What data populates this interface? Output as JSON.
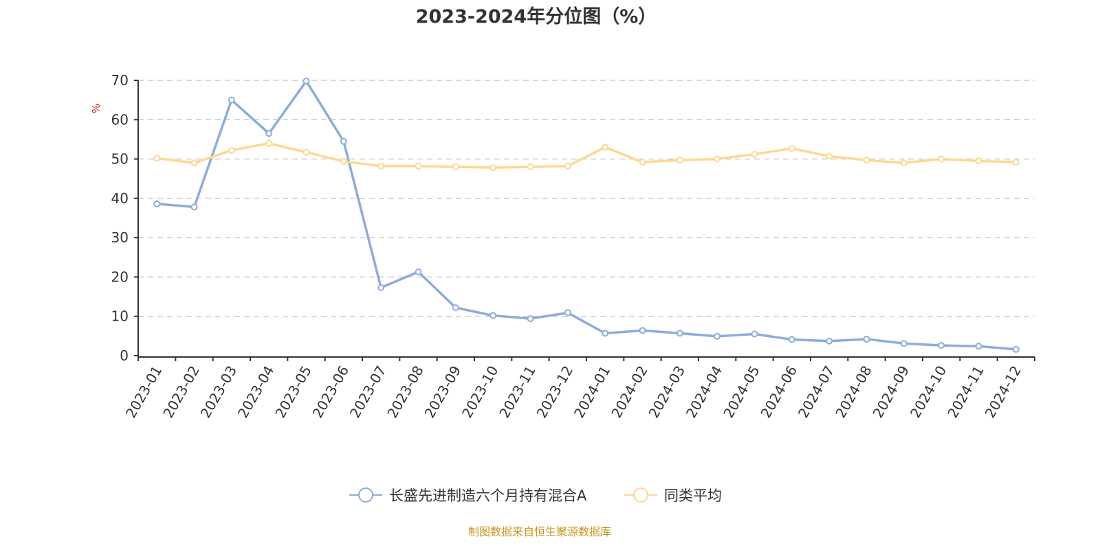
{
  "chart_data": {
    "type": "line",
    "title": "2023-2024年分位图（%）",
    "ylabel": "%",
    "xlabel": "",
    "ylim": [
      0,
      70
    ],
    "yticks": [
      0,
      10,
      20,
      30,
      40,
      50,
      60,
      70
    ],
    "grid": true,
    "legend_position": "bottom",
    "categories": [
      "2023-01",
      "2023-02",
      "2023-03",
      "2023-04",
      "2023-05",
      "2023-06",
      "2023-07",
      "2023-08",
      "2023-09",
      "2023-10",
      "2023-11",
      "2023-12",
      "2024-01",
      "2024-02",
      "2024-03",
      "2024-04",
      "2024-05",
      "2024-06",
      "2024-07",
      "2024-08",
      "2024-09",
      "2024-10",
      "2024-11",
      "2024-12"
    ],
    "series": [
      {
        "name": "长盛先进制造六个月持有混合A",
        "color": "#8cacdc",
        "values": [
          38.6,
          37.8,
          65.0,
          56.5,
          69.8,
          54.5,
          17.3,
          21.3,
          12.2,
          10.2,
          9.4,
          10.9,
          5.7,
          6.4,
          5.7,
          4.9,
          5.5,
          4.1,
          3.7,
          4.2,
          3.1,
          2.6,
          2.4,
          1.6
        ]
      },
      {
        "name": "同类平均",
        "color": "#fed88e",
        "values": [
          50.2,
          49.0,
          52.2,
          54.0,
          51.7,
          49.4,
          48.2,
          48.2,
          48.0,
          47.8,
          48.0,
          48.2,
          53.0,
          49.2,
          49.7,
          50.0,
          51.2,
          52.7,
          50.7,
          49.7,
          49.0,
          50.0,
          49.5,
          49.2
        ]
      }
    ]
  },
  "footer": {
    "source": "制图数据来自恒生聚源数据库",
    "color": "#c8961e"
  }
}
